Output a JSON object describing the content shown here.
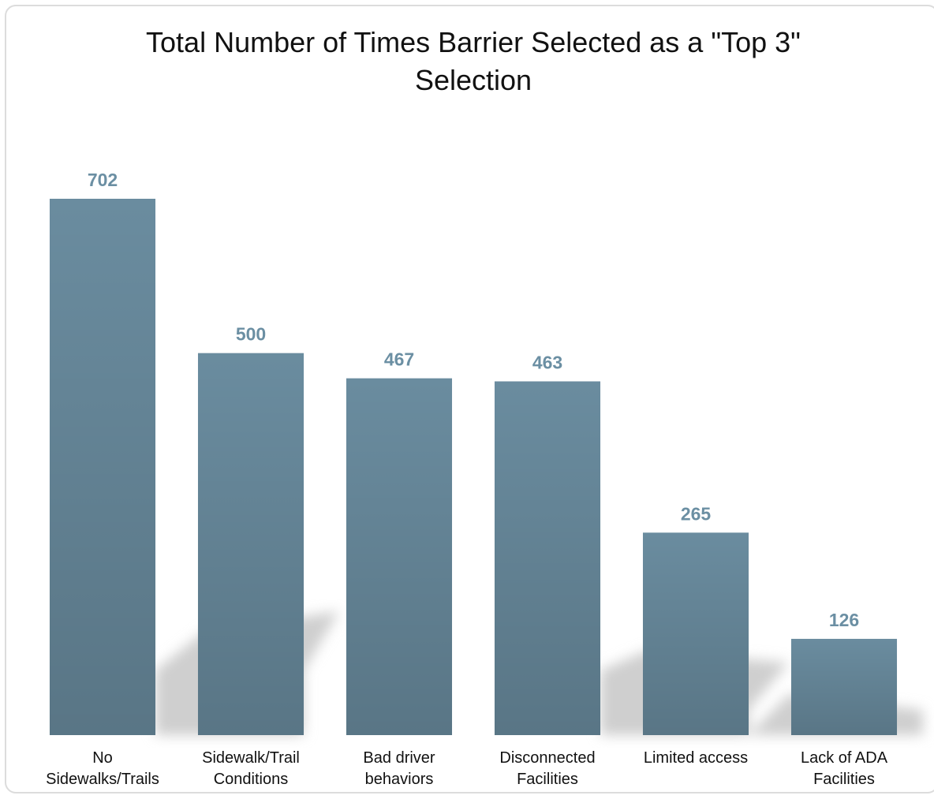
{
  "chart_data": {
    "type": "bar",
    "title": "Total Number of Times Barrier Selected as a \"Top 3\" Selection",
    "categories": [
      "No Sidewalks/Trails",
      "Sidewalk/Trail Conditions",
      "Bad driver behaviors",
      "Disconnected Facilities",
      "Limited access",
      "Lack of ADA Facilities"
    ],
    "values": [
      702,
      500,
      467,
      463,
      265,
      126
    ],
    "color": "#6a8c9f"
  }
}
